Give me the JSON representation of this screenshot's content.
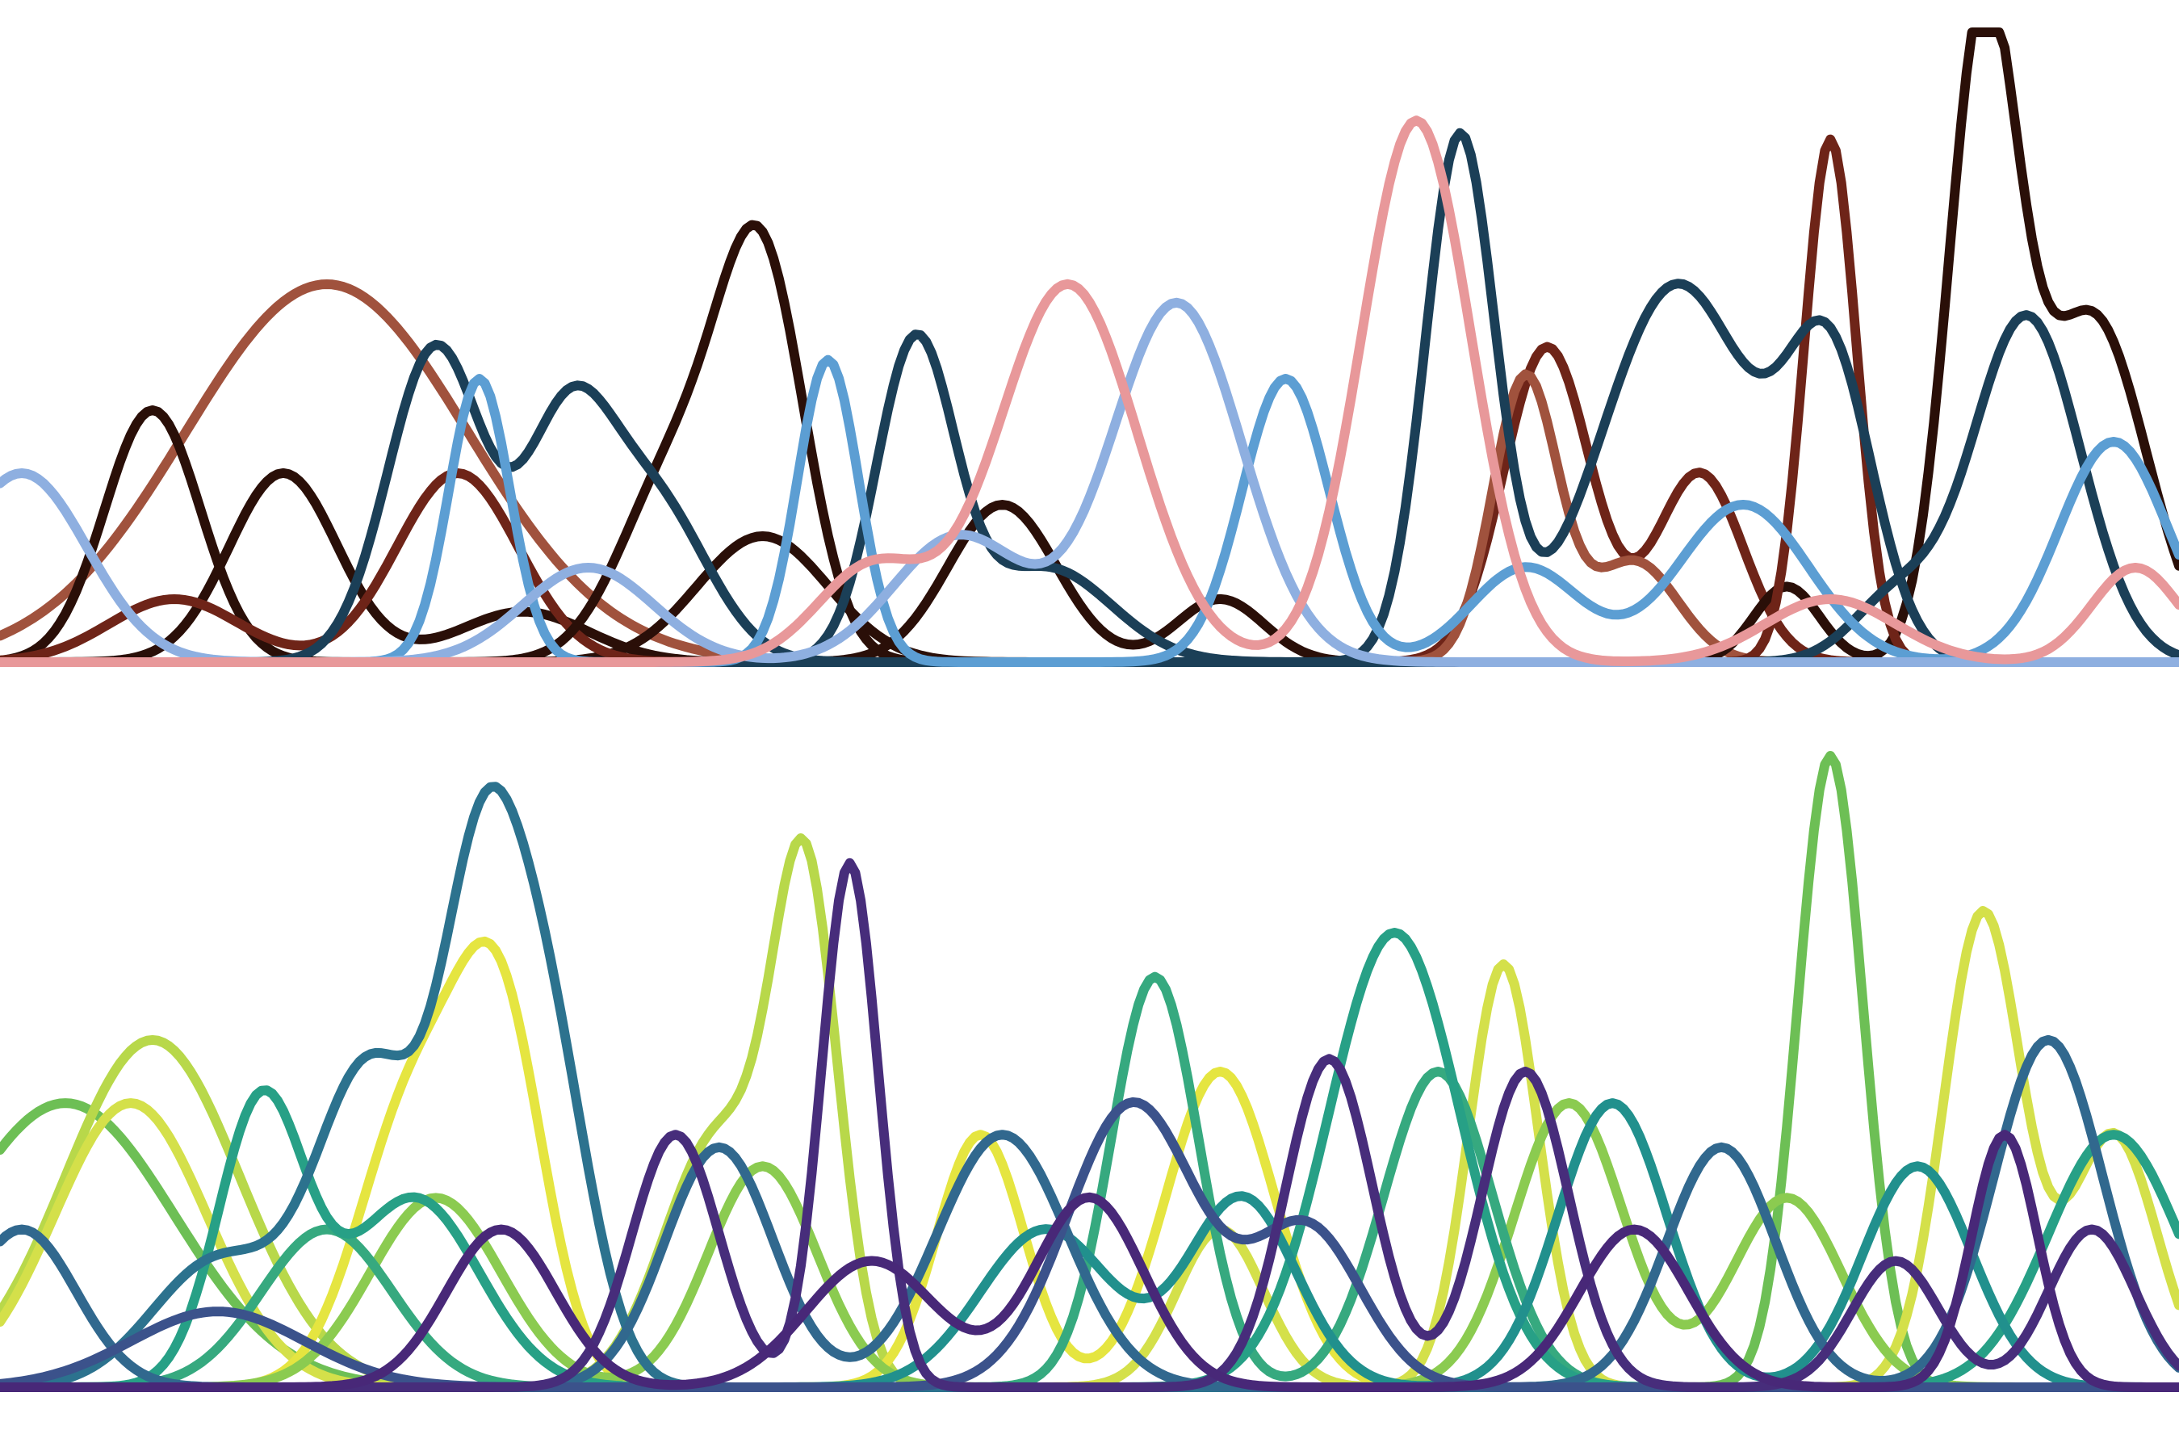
{
  "chart_data": [
    {
      "type": "line",
      "title": "",
      "xlabel": "",
      "ylabel": "",
      "grid": false,
      "legend": "none",
      "axes_visible": false,
      "xlim": [
        0,
        100
      ],
      "ylim": [
        0,
        100
      ],
      "baseline_color": "#A0523D",
      "series": [
        {
          "color": "#A0523D",
          "peaks": [
            [
              15,
              60,
              6.5
            ]
          ]
        },
        {
          "color": "#2A0F08",
          "peaks": [
            [
              7,
              40,
              2.2
            ],
            [
              35,
              20,
              3
            ]
          ]
        },
        {
          "color": "#2A0F08",
          "peaks": [
            [
              13,
              30,
              2.5
            ],
            [
              24,
              8,
              3
            ]
          ]
        },
        {
          "color": "#6E2418",
          "peaks": [
            [
              21,
              30,
              2.8
            ],
            [
              8,
              10,
              3
            ]
          ]
        },
        {
          "color": "#2A0F08",
          "peaks": [
            [
              35,
              60,
              2
            ],
            [
              31,
              30,
              2.5
            ]
          ]
        },
        {
          "color": "#2A0F08",
          "peaks": [
            [
              46,
              25,
              2.5
            ],
            [
              56,
              10,
              2
            ]
          ]
        },
        {
          "color": "#6E2418",
          "peaks": [
            [
              71,
              50,
              2
            ],
            [
              78,
              30,
              2
            ]
          ]
        },
        {
          "color": "#A0523D",
          "peaks": [
            [
              70,
              45,
              1.5
            ],
            [
              75,
              16,
              2
            ]
          ]
        },
        {
          "color": "#2A0F08",
          "peaks": [
            [
              91,
              100,
              1.6
            ],
            [
              96,
              55,
              2.5
            ],
            [
              82,
              12,
              1.5
            ]
          ]
        },
        {
          "color": "#6E2418",
          "peaks": [
            [
              84,
              83,
              1.2
            ]
          ]
        },
        {
          "color": "#1B3F57",
          "peaks": [
            [
              20,
              50,
              2.2
            ],
            [
              26,
              35,
              2
            ],
            [
              30,
              25,
              2.5
            ]
          ]
        },
        {
          "color": "#1B3F57",
          "peaks": [
            [
              42,
              50,
              1.8
            ],
            [
              48,
              15,
              3
            ]
          ]
        },
        {
          "color": "#1B3F57",
          "peaks": [
            [
              67,
              83,
              1.6
            ],
            [
              77,
              60,
              3.5
            ],
            [
              84,
              45,
              2
            ]
          ]
        },
        {
          "color": "#1B3F57",
          "peaks": [
            [
              93,
              55,
              2.5
            ],
            [
              87,
              10,
              2
            ]
          ]
        },
        {
          "color": "#5C9ED3",
          "peaks": [
            [
              22,
              45,
              1.4
            ],
            [
              38,
              48,
              1.4
            ],
            [
              59,
              45,
              2
            ],
            [
              70,
              15,
              2.5
            ],
            [
              80,
              25,
              3
            ],
            [
              97,
              35,
              2.5
            ]
          ]
        },
        {
          "color": "#8EAFE0",
          "peaks": [
            [
              1,
              30,
              3
            ],
            [
              27,
              15,
              3
            ],
            [
              54,
              57,
              3
            ],
            [
              44,
              20,
              3
            ]
          ]
        },
        {
          "color": "#E8989A",
          "peaks": [
            [
              49,
              60,
              3.2
            ],
            [
              65,
              86,
              2.5
            ],
            [
              40,
              15,
              2.5
            ],
            [
              84,
              10,
              3
            ],
            [
              98,
              15,
              2
            ]
          ]
        }
      ]
    },
    {
      "type": "line",
      "title": "",
      "xlabel": "",
      "ylabel": "",
      "grid": false,
      "legend": "none",
      "axes_visible": false,
      "xlim": [
        0,
        100
      ],
      "ylim": [
        0,
        100
      ],
      "baseline_color": "#7AB858",
      "series": [
        {
          "color": "#6DBF55",
          "peaks": [
            [
              3,
              45,
              5
            ],
            [
              84,
              100,
              1.5
            ]
          ]
        },
        {
          "color": "#B8D84A",
          "peaks": [
            [
              7,
              55,
              4
            ],
            [
              37,
              75,
              1.5
            ],
            [
              33,
              40,
              2.5
            ]
          ]
        },
        {
          "color": "#D4E04A",
          "peaks": [
            [
              6,
              45,
              3.5
            ],
            [
              56,
              25,
              2
            ],
            [
              69,
              67,
              1.6
            ],
            [
              91,
              75,
              1.8
            ],
            [
              97,
              40,
              2
            ]
          ]
        },
        {
          "color": "#E5E540",
          "peaks": [
            [
              19,
              45,
              2.5
            ],
            [
              23,
              55,
              2
            ],
            [
              56,
              50,
              2.5
            ],
            [
              45,
              40,
              2
            ]
          ]
        },
        {
          "color": "#8BCB50",
          "peaks": [
            [
              35,
              35,
              2.5
            ],
            [
              20,
              30,
              3
            ],
            [
              72,
              45,
              2.5
            ],
            [
              82,
              30,
              2.5
            ]
          ]
        },
        {
          "color": "#36A97F",
          "peaks": [
            [
              53,
              65,
              2
            ],
            [
              66,
              50,
              2.5
            ],
            [
              15,
              25,
              3
            ]
          ]
        },
        {
          "color": "#27A086",
          "peaks": [
            [
              64,
              72,
              3
            ],
            [
              12,
              45,
              2
            ],
            [
              19,
              30,
              3
            ],
            [
              97,
              40,
              3
            ]
          ]
        },
        {
          "color": "#21908D",
          "peaks": [
            [
              48,
              25,
              3
            ],
            [
              57,
              30,
              2.5
            ],
            [
              74,
              45,
              2.5
            ],
            [
              88,
              35,
              2.5
            ]
          ]
        },
        {
          "color": "#2C728E",
          "peaks": [
            [
              17,
              50,
              2.5
            ],
            [
              22,
              68,
              1.8
            ],
            [
              25,
              55,
              2
            ],
            [
              10,
              20,
              3
            ]
          ]
        },
        {
          "color": "#31688E",
          "peaks": [
            [
              1,
              25,
              2.5
            ],
            [
              33,
              38,
              2.5
            ],
            [
              46,
              40,
              3
            ],
            [
              79,
              38,
              2.5
            ],
            [
              94,
              55,
              2.5
            ]
          ]
        },
        {
          "color": "#3B528B",
          "peaks": [
            [
              10,
              12,
              4
            ],
            [
              52,
              45,
              3
            ],
            [
              60,
              25,
              2.5
            ]
          ]
        },
        {
          "color": "#472D7B",
          "peaks": [
            [
              39,
              83,
              1.3
            ],
            [
              31,
              40,
              2
            ],
            [
              61,
              52,
              2
            ],
            [
              70,
              50,
              2
            ],
            [
              87,
              20,
              2
            ],
            [
              96,
              25,
              2
            ]
          ]
        },
        {
          "color": "#482878",
          "peaks": [
            [
              23,
              25,
              2.5
            ],
            [
              40,
              20,
              3
            ],
            [
              50,
              30,
              2.5
            ],
            [
              75,
              25,
              2.5
            ],
            [
              92,
              40,
              1.5
            ]
          ]
        }
      ]
    }
  ]
}
